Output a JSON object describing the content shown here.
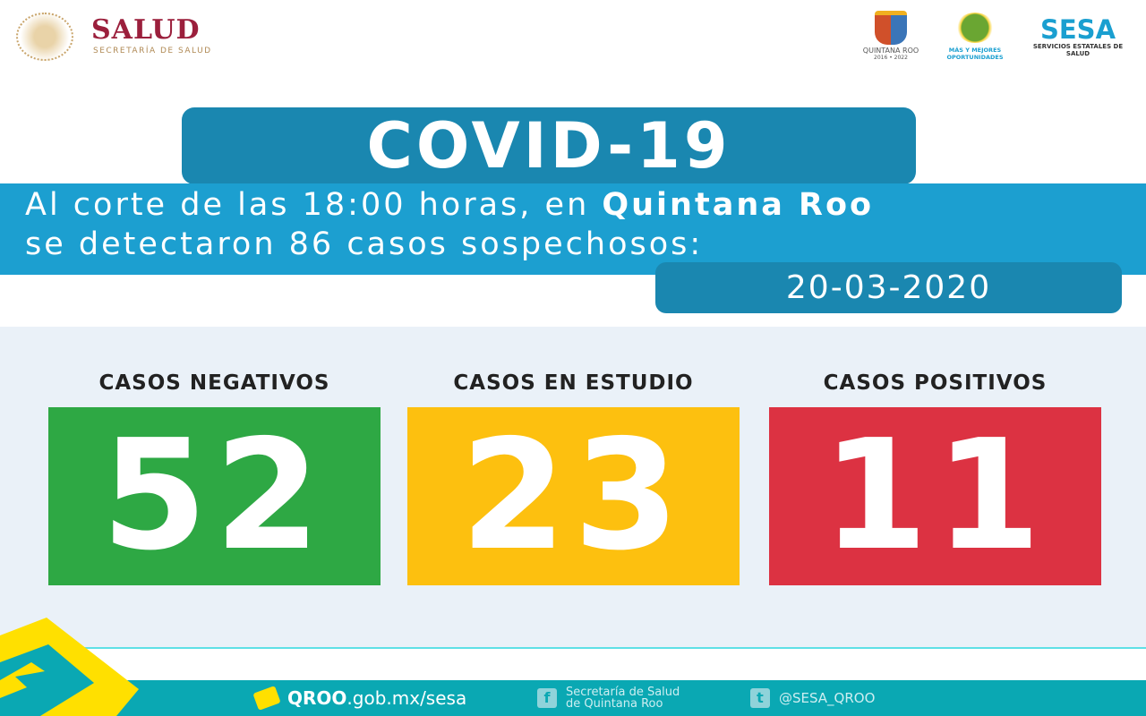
{
  "header": {
    "salud_title": "SALUD",
    "salud_subtitle": "SECRETARÍA DE SALUD",
    "qroo_logo": "QUINTANA ROO",
    "qroo_years": "2016 • 2022",
    "mejores_logo": "MÁS Y MEJORES OPORTUNIDADES",
    "sesa_title": "SESA",
    "sesa_subtitle": "SERVICIOS ESTATALES DE SALUD"
  },
  "title": "COVID-19",
  "band": {
    "line1_prefix": "Al corte de las 18:00 horas, en ",
    "line1_bold": "Quintana Roo",
    "line2": "se detectaron 86 casos sospechosos:"
  },
  "date": "20-03-2020",
  "stats": [
    {
      "label": "CASOS NEGATIVOS",
      "value": "52",
      "color": "#2ea844"
    },
    {
      "label": "CASOS EN ESTUDIO",
      "value": "23",
      "color": "#fdc00f"
    },
    {
      "label": "CASOS POSITIVOS",
      "value": "11",
      "color": "#dc3242"
    }
  ],
  "footer": {
    "site_bold": "QROO",
    "site_rest": ".gob.mx/sesa",
    "facebook_line1": "Secretaría de Salud",
    "facebook_line2": "de Quintana Roo",
    "twitter": "@SESA_QROO"
  },
  "colors": {
    "primary_blue": "#1c9fd0",
    "dark_blue": "#1a87b0",
    "teal": "#0aa8b3",
    "yellow": "#ffe000"
  }
}
